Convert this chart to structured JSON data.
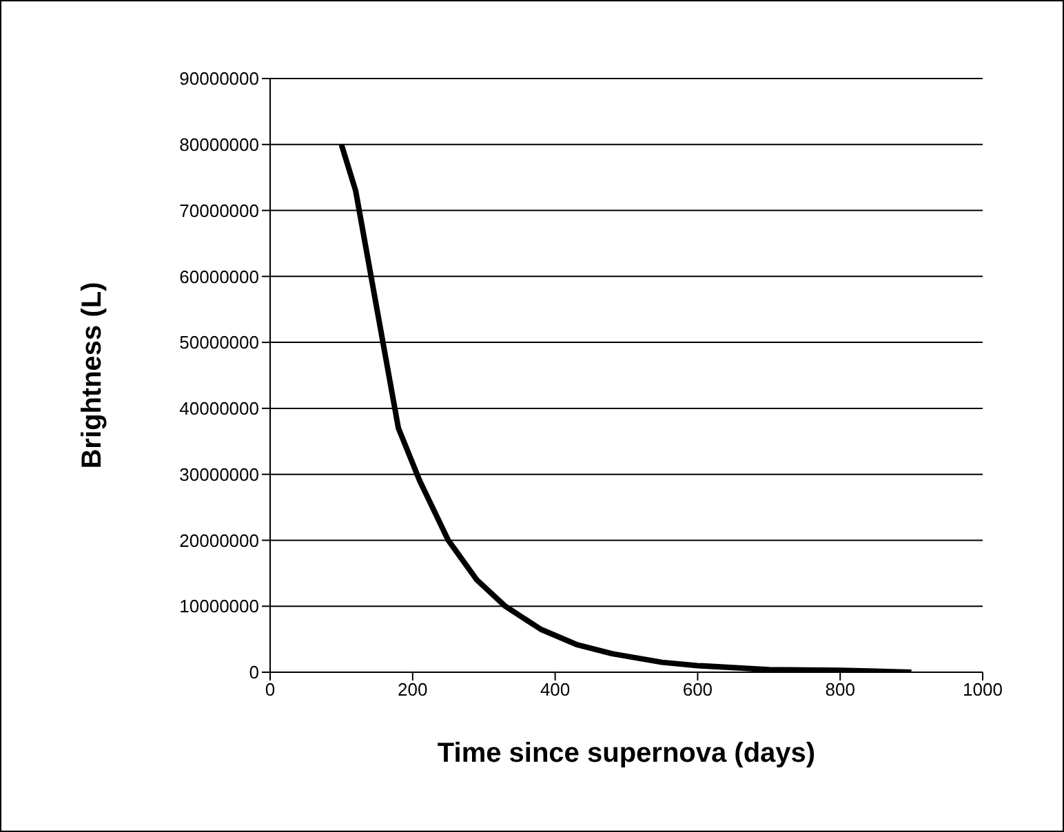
{
  "chart_data": {
    "type": "line",
    "xlabel": "Time since supernova (days)",
    "ylabel": "Brightness (L)",
    "series": [
      {
        "color": "#000000",
        "x": [
          100,
          120,
          150,
          180,
          210,
          250,
          290,
          330,
          380,
          430,
          480,
          550,
          600,
          700,
          800,
          900
        ],
        "values": [
          80000000,
          73000000,
          55000000,
          37000000,
          29000000,
          20000000,
          14000000,
          10000000,
          6500000,
          4200000,
          2800000,
          1500000,
          1000000,
          400000,
          300000,
          0
        ]
      }
    ],
    "xlim": [
      0,
      1000
    ],
    "xticks": [
      0,
      200,
      400,
      600,
      800,
      1000
    ],
    "ylim": [
      0,
      90000000
    ],
    "yticks": [
      0,
      10000000,
      20000000,
      30000000,
      40000000,
      50000000,
      60000000,
      70000000,
      80000000,
      90000000
    ],
    "grid": "y",
    "marker": "none",
    "line_style": "solid",
    "legend": false
  }
}
